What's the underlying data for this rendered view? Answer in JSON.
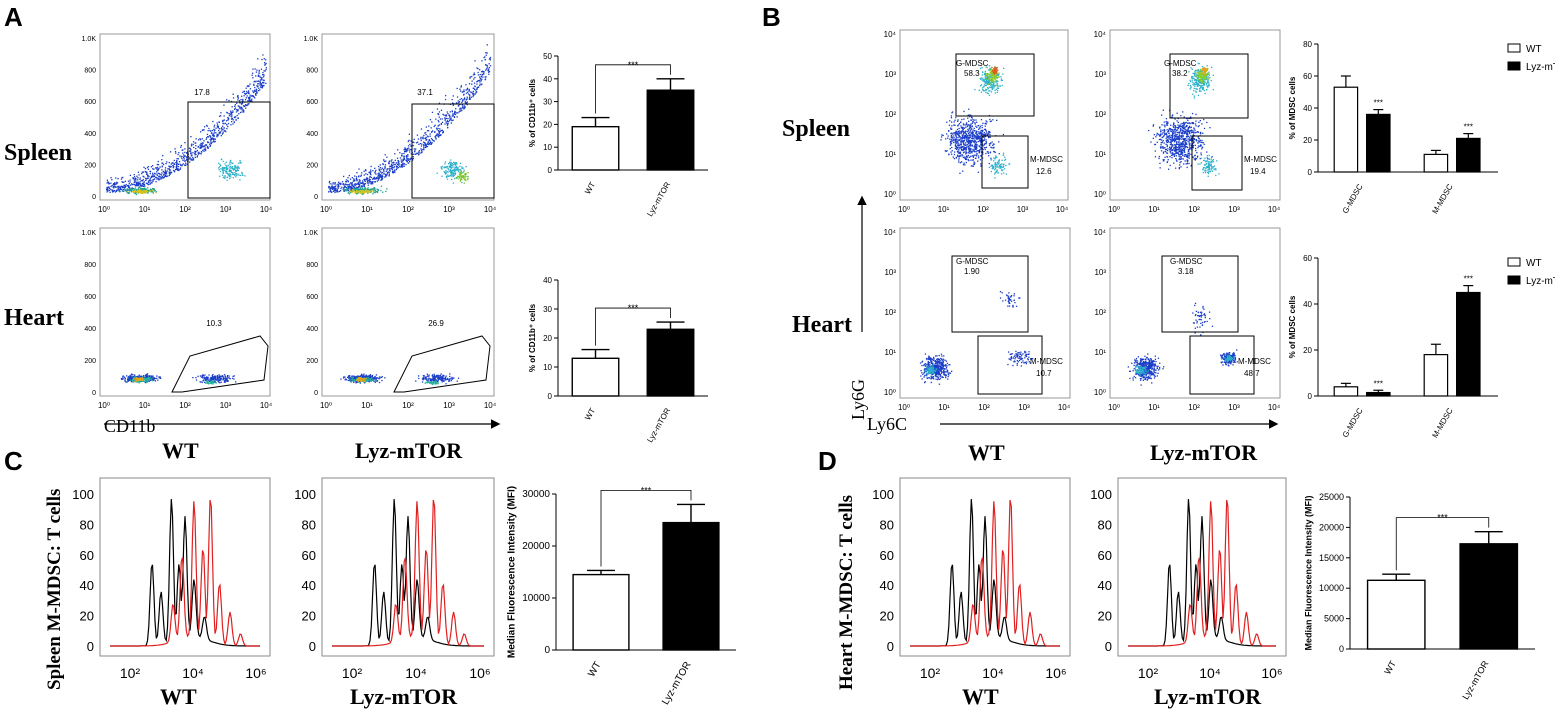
{
  "panels": {
    "A": {
      "label": "A",
      "rows": [
        "Spleen",
        "Heart"
      ],
      "groups": [
        "WT",
        "Lyz-mTOR"
      ],
      "axis_label": "CD11b",
      "y_ticks": [
        "0",
        "200",
        "400",
        "600",
        "800",
        "1.0K"
      ],
      "x_ticks": [
        "10⁰",
        "10¹",
        "10²",
        "10³",
        "10⁴"
      ],
      "gates": {
        "spleen_wt": "17.8",
        "spleen_mtor": "37.1",
        "heart_wt": "10.3",
        "heart_mtor": "26.9"
      }
    },
    "B": {
      "label": "B",
      "rows": [
        "Spleen",
        "Heart"
      ],
      "groups": [
        "WT",
        "Lyz-mTOR"
      ],
      "x_axis": "Ly6C",
      "y_axis": "Ly6G",
      "tick_labels": [
        "10⁰",
        "10¹",
        "10²",
        "10³",
        "10⁴"
      ],
      "gate_names": [
        "G-MDSC",
        "M-MDSC"
      ],
      "gates": {
        "spleen_wt": {
          "g": "58.3",
          "m": "12.6"
        },
        "spleen_mtor": {
          "g": "38.2",
          "m": "19.4"
        },
        "heart_wt": {
          "g": "1.90",
          "m": "10.7"
        },
        "heart_mtor": {
          "g": "3.18",
          "m": "48.7"
        }
      }
    },
    "C": {
      "label": "C",
      "ylabel": "Spleen M-MDSC:  T cells",
      "groups": [
        "WT",
        "Lyz-mTOR"
      ]
    },
    "D": {
      "label": "D",
      "ylabel": "Heart M-MDSC:  T cells",
      "groups": [
        "WT",
        "Lyz-mTOR"
      ]
    },
    "hist_y_ticks": [
      "0",
      "20",
      "40",
      "60",
      "80",
      "100"
    ],
    "hist_x_ticks": [
      "10²",
      "10⁴",
      "10⁶"
    ]
  },
  "chart_data": [
    {
      "id": "A_spleen_bar",
      "type": "bar",
      "categories": [
        "WT",
        "Lyz-mTOR"
      ],
      "values": [
        19,
        35
      ],
      "errors": [
        4,
        5
      ],
      "fills": [
        "#ffffff",
        "#000000"
      ],
      "ylabel": "% of CD11b⁺ cells",
      "ylim": [
        0,
        50
      ],
      "yticks": [
        "0",
        "10",
        "20",
        "30",
        "40",
        "50"
      ],
      "sig": "***"
    },
    {
      "id": "A_heart_bar",
      "type": "bar",
      "categories": [
        "WT",
        "Lyz-mTOR"
      ],
      "values": [
        13,
        23
      ],
      "errors": [
        3,
        2.5
      ],
      "fills": [
        "#ffffff",
        "#000000"
      ],
      "ylabel": "% of CD11b⁺ cells",
      "ylim": [
        0,
        40
      ],
      "yticks": [
        "0",
        "10",
        "20",
        "30",
        "40"
      ],
      "sig": "***"
    },
    {
      "id": "B_spleen_bar",
      "type": "bar",
      "categories": [
        "G-MDSC",
        "M-MDSC"
      ],
      "series": [
        {
          "name": "WT",
          "values": [
            53,
            11
          ],
          "errors": [
            7,
            2.5
          ]
        },
        {
          "name": "Lyz-mTOR",
          "values": [
            36,
            21
          ],
          "errors": [
            3,
            3
          ]
        }
      ],
      "ylabel": "% of MDSC cells",
      "ylim": [
        0,
        80
      ],
      "yticks": [
        "0",
        "20",
        "40",
        "60",
        "80"
      ],
      "sig": [
        "***",
        "***"
      ],
      "legend": "top-right"
    },
    {
      "id": "B_heart_bar",
      "type": "bar",
      "categories": [
        "G-MDSC",
        "M-MDSC"
      ],
      "series": [
        {
          "name": "WT",
          "values": [
            4,
            18
          ],
          "errors": [
            1.5,
            4.5
          ]
        },
        {
          "name": "Lyz-mTOR",
          "values": [
            1.5,
            45
          ],
          "errors": [
            1,
            3
          ]
        }
      ],
      "ylabel": "% of MDSC cells",
      "ylim": [
        0,
        60
      ],
      "yticks": [
        "0",
        "20",
        "40",
        "60"
      ],
      "sig": [
        "***",
        "***"
      ],
      "legend": "top-right"
    },
    {
      "id": "C_bar",
      "type": "bar",
      "categories": [
        "WT",
        "Lyz-mTOR"
      ],
      "values": [
        14500,
        24500
      ],
      "errors": [
        800,
        3500
      ],
      "fills": [
        "#ffffff",
        "#000000"
      ],
      "ylabel": "Median Fluorescence Intensity (MFI)",
      "ylim": [
        0,
        30000
      ],
      "yticks": [
        "0",
        "10000",
        "20000",
        "30000"
      ],
      "sig": "***"
    },
    {
      "id": "D_bar",
      "type": "bar",
      "categories": [
        "WT",
        "Lyz-mTOR"
      ],
      "values": [
        11300,
        17300
      ],
      "errors": [
        1000,
        2000
      ],
      "fills": [
        "#ffffff",
        "#000000"
      ],
      "ylabel": "Median Fluorescence Intensity (MFI)",
      "ylim": [
        0,
        25000
      ],
      "yticks": [
        "0",
        "5000",
        "10000",
        "15000",
        "20000",
        "25000"
      ],
      "sig": "***"
    }
  ]
}
